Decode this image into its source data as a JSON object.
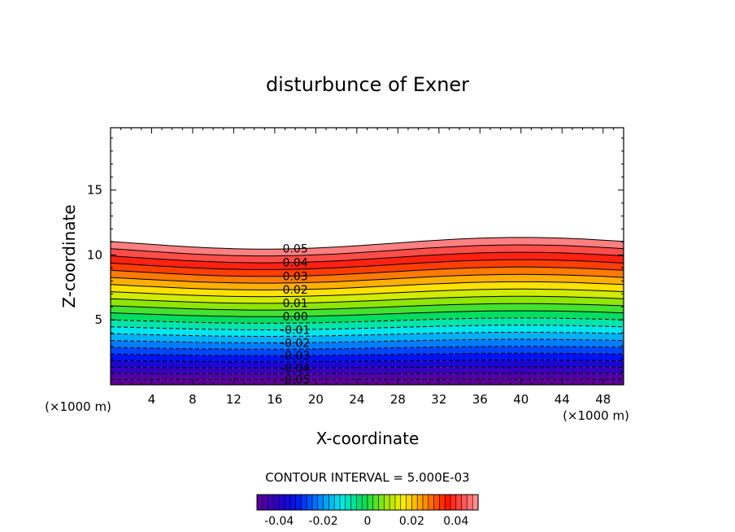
{
  "chart_data": {
    "type": "contour",
    "title": "disturbunce of Exner",
    "xlabel": "X-coordinate",
    "ylabel": "Z-coordinate",
    "x_unit": "(×1000 m)",
    "z_unit": "(×1000 m)",
    "xlim": [
      0,
      50
    ],
    "ylim": [
      0,
      19.8
    ],
    "x_ticks": [
      4,
      8,
      12,
      16,
      20,
      24,
      28,
      32,
      36,
      40,
      44,
      48
    ],
    "y_ticks": [
      5,
      10,
      15
    ],
    "contour_interval_text": "CONTOUR INTERVAL = 5.000E-03",
    "contour_interval": 0.005,
    "contour_labels": [
      {
        "text": "0.05",
        "value": 0.05
      },
      {
        "text": "0.04",
        "value": 0.04
      },
      {
        "text": "0.03",
        "value": 0.03
      },
      {
        "text": "0.02",
        "value": 0.02
      },
      {
        "text": "0.01",
        "value": 0.01
      },
      {
        "text": "0.00",
        "value": 0.0
      },
      {
        "text": "-0.01",
        "value": -0.01
      },
      {
        "text": "-0.02",
        "value": -0.02
      },
      {
        "text": "-0.03",
        "value": -0.03
      },
      {
        "text": "-0.04",
        "value": -0.04
      },
      {
        "text": "-0.05",
        "value": -0.05
      }
    ],
    "colorbar": {
      "min": -0.05,
      "max": 0.05,
      "ticks": [
        {
          "text": "-0.04",
          "value": -0.04
        },
        {
          "text": "-0.02",
          "value": -0.02
        },
        {
          "text": "0",
          "value": 0
        },
        {
          "text": "0.02",
          "value": 0.02
        },
        {
          "text": "0.04",
          "value": 0.04
        }
      ]
    }
  }
}
